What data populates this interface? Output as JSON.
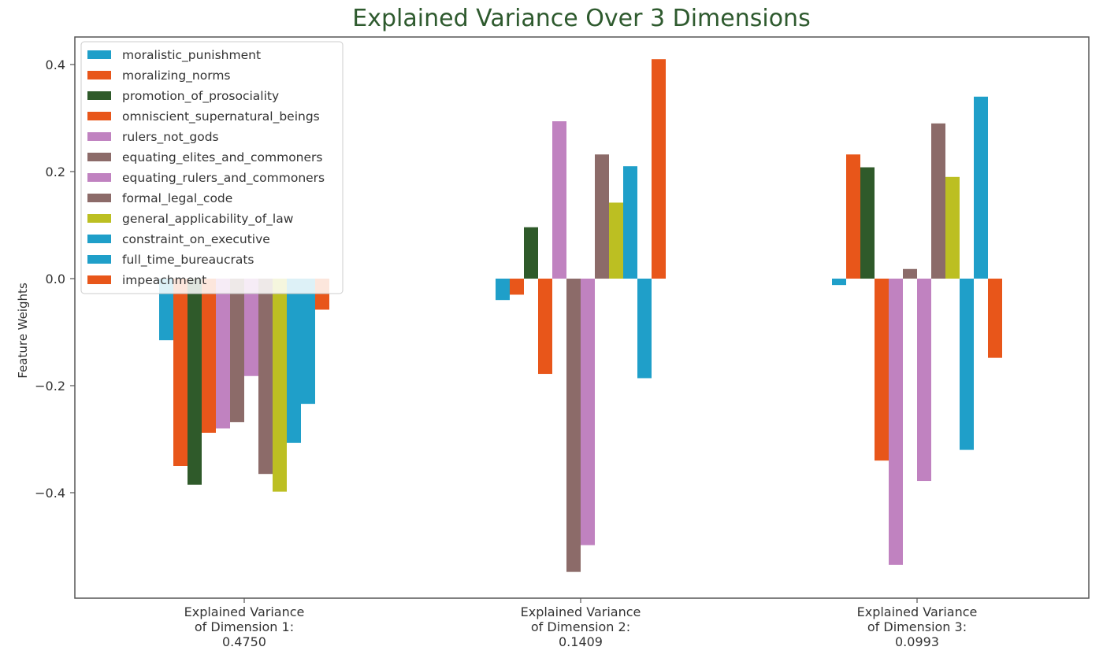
{
  "chart_data": {
    "type": "bar",
    "title": "Explained Variance Over 3 Dimensions",
    "xlabel": "",
    "ylabel": "Feature Weights",
    "ylim": [
      -0.6,
      0.45
    ],
    "yticks": [
      -0.4,
      -0.2,
      0.0,
      0.2,
      0.4
    ],
    "ytick_labels": [
      "−0.4",
      "−0.2",
      "0.0",
      "0.2",
      "0.4"
    ],
    "grid": false,
    "legend_position": "top-left",
    "categories": [
      [
        "Explained Variance",
        "of Dimension 1:",
        "0.4750"
      ],
      [
        "Explained Variance",
        "of Dimension 2:",
        "0.1409"
      ],
      [
        "Explained Variance",
        "of Dimension 3:",
        "0.0993"
      ]
    ],
    "series": [
      {
        "name": "moralistic_punishment",
        "color": "#1f9fc9",
        "values": [
          -0.115,
          -0.04,
          -0.012
        ]
      },
      {
        "name": "moralizing_norms",
        "color": "#e8561a",
        "values": [
          -0.35,
          -0.03,
          0.232
        ]
      },
      {
        "name": "promotion_of_prosociality",
        "color": "#2f5a2a",
        "values": [
          -0.385,
          0.096,
          0.208
        ]
      },
      {
        "name": "omniscient_supernatural_beings",
        "color": "#e8561a",
        "values": [
          -0.288,
          -0.178,
          -0.34
        ]
      },
      {
        "name": "rulers_not_gods",
        "color": "#c082c0",
        "values": [
          -0.28,
          0.294,
          -0.535
        ]
      },
      {
        "name": "equating_elites_and_commoners",
        "color": "#8c6b69",
        "values": [
          -0.268,
          -0.548,
          0.018
        ]
      },
      {
        "name": "equating_rulers_and_commoners",
        "color": "#c082c0",
        "values": [
          -0.182,
          -0.498,
          -0.378
        ]
      },
      {
        "name": "formal_legal_code",
        "color": "#8c6b69",
        "values": [
          -0.365,
          0.232,
          0.29
        ]
      },
      {
        "name": "general_applicability_of_law",
        "color": "#bcbf22",
        "values": [
          -0.398,
          0.142,
          0.19
        ]
      },
      {
        "name": "constraint_on_executive",
        "color": "#1f9fc9",
        "values": [
          -0.307,
          0.21,
          -0.32
        ]
      },
      {
        "name": "full_time_bureaucrats",
        "color": "#1f9fc9",
        "values": [
          -0.234,
          -0.186,
          0.34
        ]
      },
      {
        "name": "impeachment",
        "color": "#e8561a",
        "values": [
          -0.058,
          0.41,
          -0.148
        ]
      }
    ]
  }
}
